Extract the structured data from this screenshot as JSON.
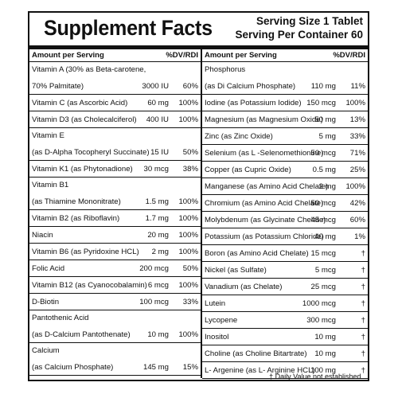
{
  "label": {
    "title": "Supplement Facts",
    "serving_size": "Serving Size 1 Tablet",
    "servings_per_container": "Serving Per Container 60",
    "col_header_amount": "Amount per Serving",
    "col_header_dv": "%DV/RDI",
    "footnote": "† Daily Value not established."
  },
  "left_rows": [
    {
      "name": "Vitamin A (30% as Beta-carotene,",
      "sub": "70% Palmitate)",
      "amount": "3000 IU",
      "dv": "60%"
    },
    {
      "name": "Vitamin C (as Ascorbic Acid)",
      "amount": "60 mg",
      "dv": "100%"
    },
    {
      "name": "Vitamin D3 (as Cholecalciferol)",
      "amount": "400 IU",
      "dv": "100%"
    },
    {
      "name": "Vitamin E",
      "sub": "(as D-Alpha Tocopheryl Succinate)",
      "amount": "15 IU",
      "dv": "50%"
    },
    {
      "name": "Vitamin K1 (as Phytonadione)",
      "amount": "30 mcg",
      "dv": "38%"
    },
    {
      "name": "Vitamin B1",
      "sub": "(as Thiamine Mononitrate)",
      "amount": "1.5 mg",
      "dv": "100%"
    },
    {
      "name": "Vitamin B2 (as Riboflavin)",
      "amount": "1.7 mg",
      "dv": "100%"
    },
    {
      "name": "Niacin",
      "amount": "20 mg",
      "dv": "100%"
    },
    {
      "name": "Vitamin B6 (as Pyridoxine HCL)",
      "amount": "2 mg",
      "dv": "100%"
    },
    {
      "name": "Folic Acid",
      "amount": "200 mcg",
      "dv": "50%"
    },
    {
      "name": "Vitamin B12 (as Cyanocobalamin)",
      "amount": "6 mcg",
      "dv": "100%"
    },
    {
      "name": "D-Biotin",
      "amount": "100 mcg",
      "dv": "33%"
    },
    {
      "name": "Pantothenic Acid",
      "sub": "(as D-Calcium Pantothenate)",
      "amount": "10 mg",
      "dv": "100%"
    },
    {
      "name": "Calcium",
      "sub": "(as Calcium Phosphate)",
      "amount": "145 mg",
      "dv": "15%"
    }
  ],
  "right_rows": [
    {
      "name": "Phosphorus",
      "sub": "(as Di Calcium Phosphate)",
      "amount": "110 mg",
      "dv": "11%"
    },
    {
      "name": "Iodine (as Potassium Iodide)",
      "amount": "150 mcg",
      "dv": "100%"
    },
    {
      "name": "Magnesium (as Magnesium Oxide)",
      "amount": "50 mg",
      "dv": "13%"
    },
    {
      "name": "Zinc (as Zinc Oxide)",
      "amount": "5 mg",
      "dv": "33%"
    },
    {
      "name": "Selenium (as L -Selenomethionine)",
      "amount": "50 mcg",
      "dv": "71%"
    },
    {
      "name": "Copper (as Cupric Oxide)",
      "amount": "0.5 mg",
      "dv": "25%"
    },
    {
      "name": "Manganese (as Amino Acid Chelate)",
      "amount": "2 mg",
      "dv": "100%"
    },
    {
      "name": "Chromium (as Amino Acid Chelate)",
      "amount": "50 mcg",
      "dv": "42%"
    },
    {
      "name": "Molybdenum (as Glycinate Chelate)",
      "amount": "45 mcg",
      "dv": "60%"
    },
    {
      "name": "Potassium (as Potassium Chloride)",
      "amount": "40 mg",
      "dv": "1%"
    },
    {
      "name": "Boron (as Amino Acid Chelate)",
      "amount": "15 mcg",
      "dv": "†"
    },
    {
      "name": "Nickel (as Sulfate)",
      "amount": "5 mcg",
      "dv": "†"
    },
    {
      "name": "Vanadium (as Chelate)",
      "amount": "25 mcg",
      "dv": "†"
    },
    {
      "name": "Lutein",
      "amount": "1000 mcg",
      "dv": "†"
    },
    {
      "name": "Lycopene",
      "amount": "300 mcg",
      "dv": "†"
    },
    {
      "name": "Inositol",
      "amount": "10 mg",
      "dv": "†"
    },
    {
      "name": "Choline (as Choline Bitartrate)",
      "amount": "10 mg",
      "dv": "†"
    },
    {
      "name": "L- Argenine (as L- Arginine HCL)",
      "amount": "100 mg",
      "dv": "†"
    }
  ]
}
